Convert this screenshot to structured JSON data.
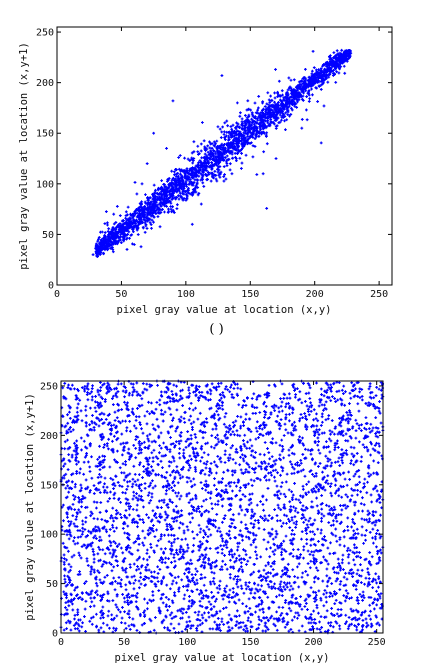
{
  "chart_data": [
    {
      "type": "scatter",
      "title": "",
      "caption": "( )",
      "xlabel": "pixel gray value at location (x,y)",
      "ylabel": "pixel gray value at location (x,y+1)",
      "xlim": [
        0,
        260
      ],
      "ylim": [
        0,
        255
      ],
      "xticks": [
        0,
        50,
        100,
        150,
        200,
        250
      ],
      "yticks": [
        0,
        50,
        100,
        150,
        200,
        250
      ],
      "grid": false,
      "marker_color": "#0000ff",
      "series": [
        {
          "description": "strongly correlated: y ≈ x, points spread along diagonal from about (30,30) to (228,228), denser near center",
          "x": [
            28,
            32,
            35,
            38,
            40,
            42,
            45,
            48,
            50,
            52,
            55,
            58,
            60,
            63,
            65,
            68,
            70,
            73,
            75,
            78,
            80,
            83,
            85,
            88,
            90,
            93,
            95,
            98,
            100,
            103,
            105,
            108,
            110,
            113,
            115,
            118,
            120,
            123,
            125,
            128,
            130,
            133,
            135,
            138,
            140,
            143,
            145,
            148,
            150,
            153,
            155,
            158,
            160,
            163,
            165,
            168,
            170,
            173,
            175,
            178,
            180,
            183,
            185,
            188,
            190,
            193,
            195,
            198,
            200,
            203,
            205,
            208,
            210,
            213,
            215,
            218,
            220,
            223,
            225,
            228,
            85,
            75,
            128,
            90,
            160,
            112,
            60,
            44,
            66,
            70,
            105,
            170,
            140,
            62,
            190
          ],
          "y": [
            30,
            33,
            36,
            37,
            41,
            43,
            44,
            47,
            52,
            51,
            56,
            57,
            61,
            62,
            66,
            67,
            71,
            72,
            76,
            77,
            81,
            82,
            86,
            87,
            91,
            92,
            96,
            97,
            101,
            102,
            106,
            107,
            111,
            112,
            116,
            117,
            121,
            122,
            126,
            127,
            131,
            132,
            136,
            137,
            141,
            142,
            146,
            147,
            151,
            152,
            156,
            157,
            161,
            162,
            166,
            167,
            171,
            172,
            176,
            177,
            181,
            182,
            186,
            187,
            191,
            192,
            196,
            197,
            201,
            202,
            206,
            207,
            211,
            212,
            216,
            217,
            221,
            222,
            226,
            229,
            135,
            150,
            207,
            182,
            110,
            80,
            40,
            70,
            100,
            120,
            60,
            125,
            180,
            90,
            155
          ]
        }
      ]
    },
    {
      "type": "scatter",
      "title": "",
      "xlabel": "pixel gray value at location (x,y)",
      "ylabel": "pixel gray value at location (x,y+1)",
      "xlim": [
        0,
        255
      ],
      "ylim": [
        0,
        255
      ],
      "xticks": [
        0,
        50,
        100,
        150,
        200,
        250
      ],
      "yticks": [
        0,
        50,
        100,
        150,
        200,
        250
      ],
      "grid": false,
      "marker_color": "#0000ff",
      "series": [
        {
          "description": "uncorrelated: points uniformly distributed across the full 0–255 × 0–255 range",
          "uniform_range": [
            0,
            255
          ],
          "point_count": 4000
        }
      ]
    }
  ]
}
